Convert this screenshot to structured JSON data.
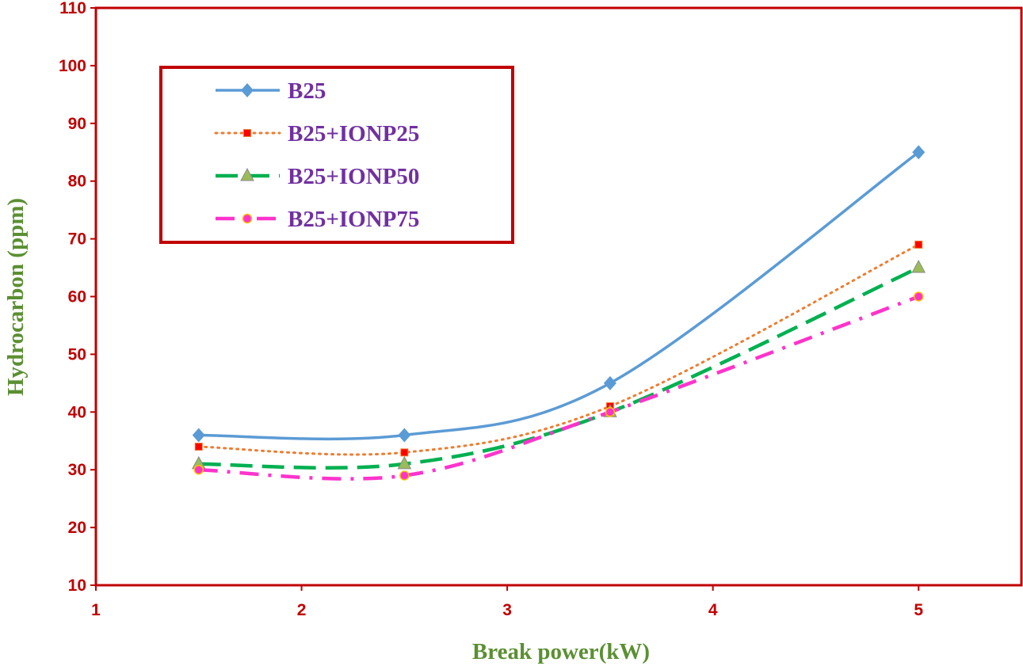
{
  "chart_data": {
    "type": "line",
    "title": "",
    "xlabel": "Break power(kW)",
    "ylabel": "Hydrocarbon (ppm)",
    "xlim": [
      1,
      5.5
    ],
    "ylim": [
      10,
      110
    ],
    "xticks": [
      1,
      2,
      3,
      4,
      5
    ],
    "yticks": [
      10,
      20,
      30,
      40,
      50,
      60,
      70,
      80,
      90,
      100,
      110
    ],
    "grid": false,
    "legend_position": "top-left",
    "x": [
      1.5,
      2.5,
      3.5,
      5
    ],
    "series": [
      {
        "name": "B25",
        "values": [
          36,
          36,
          45,
          85
        ],
        "color": "#5b9bd5",
        "dash": "",
        "marker": "diamond"
      },
      {
        "name": "B25+IONP25",
        "values": [
          34,
          33,
          41,
          69
        ],
        "color": "#ed7d31",
        "dash": "2 6",
        "marker": "square",
        "marker_color": "#ff0000"
      },
      {
        "name": "B25+IONP50",
        "values": [
          31,
          31,
          40,
          65
        ],
        "color": "#00b050",
        "dash": "28 12",
        "marker": "triangle",
        "marker_color": "#9bbb59"
      },
      {
        "name": "B25+IONP75",
        "values": [
          30,
          29,
          40,
          60
        ],
        "color": "#ff33cc",
        "dash": "24 12 4 12",
        "marker": "circle",
        "marker_color": "#ff33cc"
      }
    ],
    "colors": {
      "frame": "#c00000",
      "ticks": "#c00000",
      "axis_title": "#5b8f33",
      "legend_text": "#7030a0"
    }
  }
}
